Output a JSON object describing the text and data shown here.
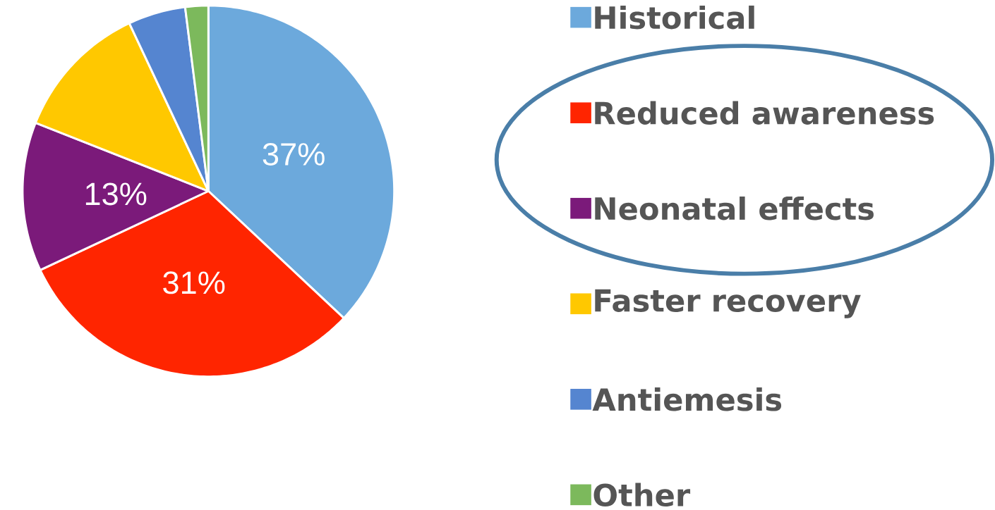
{
  "chart_data": {
    "type": "pie",
    "categories": [
      "Historical",
      "Reduced awareness",
      "Neonatal effects",
      "Faster recovery",
      "Antiemesis",
      "Other"
    ],
    "values": [
      37,
      31,
      13,
      12,
      5,
      2
    ],
    "colors": [
      "#6CA9DC",
      "#FF2500",
      "#7B1A7A",
      "#FFC800",
      "#5585D0",
      "#7CB95C"
    ],
    "value_labels": [
      "37%",
      "31%",
      "13%",
      null,
      null,
      null
    ],
    "legend": "right"
  }
}
